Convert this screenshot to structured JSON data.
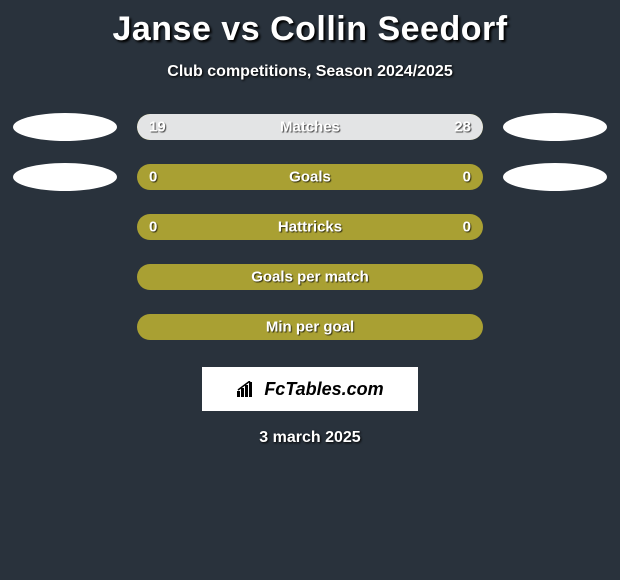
{
  "header": {
    "title": "Janse vs Collin Seedorf",
    "subtitle": "Club competitions, Season 2024/2025"
  },
  "colors": {
    "bg": "#29323c",
    "bar_empty": "#a9a033",
    "player1_fill": "#e3e4e5",
    "player2_fill": "#e3e4e5",
    "text": "#ffffff"
  },
  "stats": [
    {
      "label": "Matches",
      "left_value": "19",
      "right_value": "28",
      "left_pct": 40,
      "right_pct": 60,
      "show_ellipses": true
    },
    {
      "label": "Goals",
      "left_value": "0",
      "right_value": "0",
      "left_pct": 0,
      "right_pct": 0,
      "show_ellipses": true
    },
    {
      "label": "Hattricks",
      "left_value": "0",
      "right_value": "0",
      "left_pct": 0,
      "right_pct": 0,
      "show_ellipses": false
    },
    {
      "label": "Goals per match",
      "left_value": "",
      "right_value": "",
      "left_pct": 0,
      "right_pct": 0,
      "show_ellipses": false
    },
    {
      "label": "Min per goal",
      "left_value": "",
      "right_value": "",
      "left_pct": 0,
      "right_pct": 0,
      "show_ellipses": false
    }
  ],
  "watermark": {
    "text": "FcTables.com"
  },
  "footer": {
    "date": "3 march 2025"
  }
}
